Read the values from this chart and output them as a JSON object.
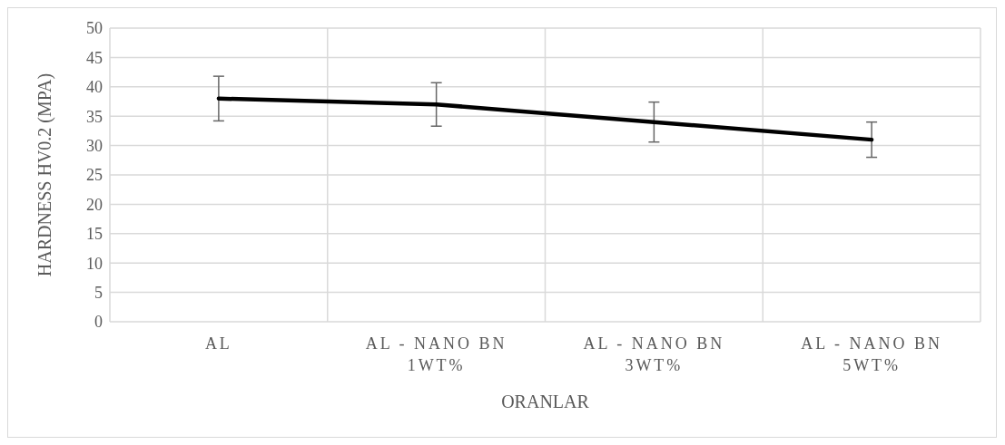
{
  "chart_data": {
    "type": "line",
    "xlabel": "ORANLAR",
    "ylabel": "HARDNESS HV0.2 (MPA)",
    "categories": [
      "AL",
      "AL - NANO BN\n1WT%",
      "AL - NANO BN\n3WT%",
      "AL - NANO BN\n5WT%"
    ],
    "series": [
      {
        "color": "#000000",
        "values": [
          38,
          37,
          34,
          31
        ],
        "errors": [
          3.8,
          3.7,
          3.4,
          3
        ]
      }
    ],
    "ylim": [
      0,
      50
    ],
    "yticks": [
      0,
      5,
      10,
      15,
      20,
      25,
      30,
      35,
      40,
      45,
      50
    ],
    "grid": true,
    "marker": "none",
    "line_style": "solid"
  }
}
